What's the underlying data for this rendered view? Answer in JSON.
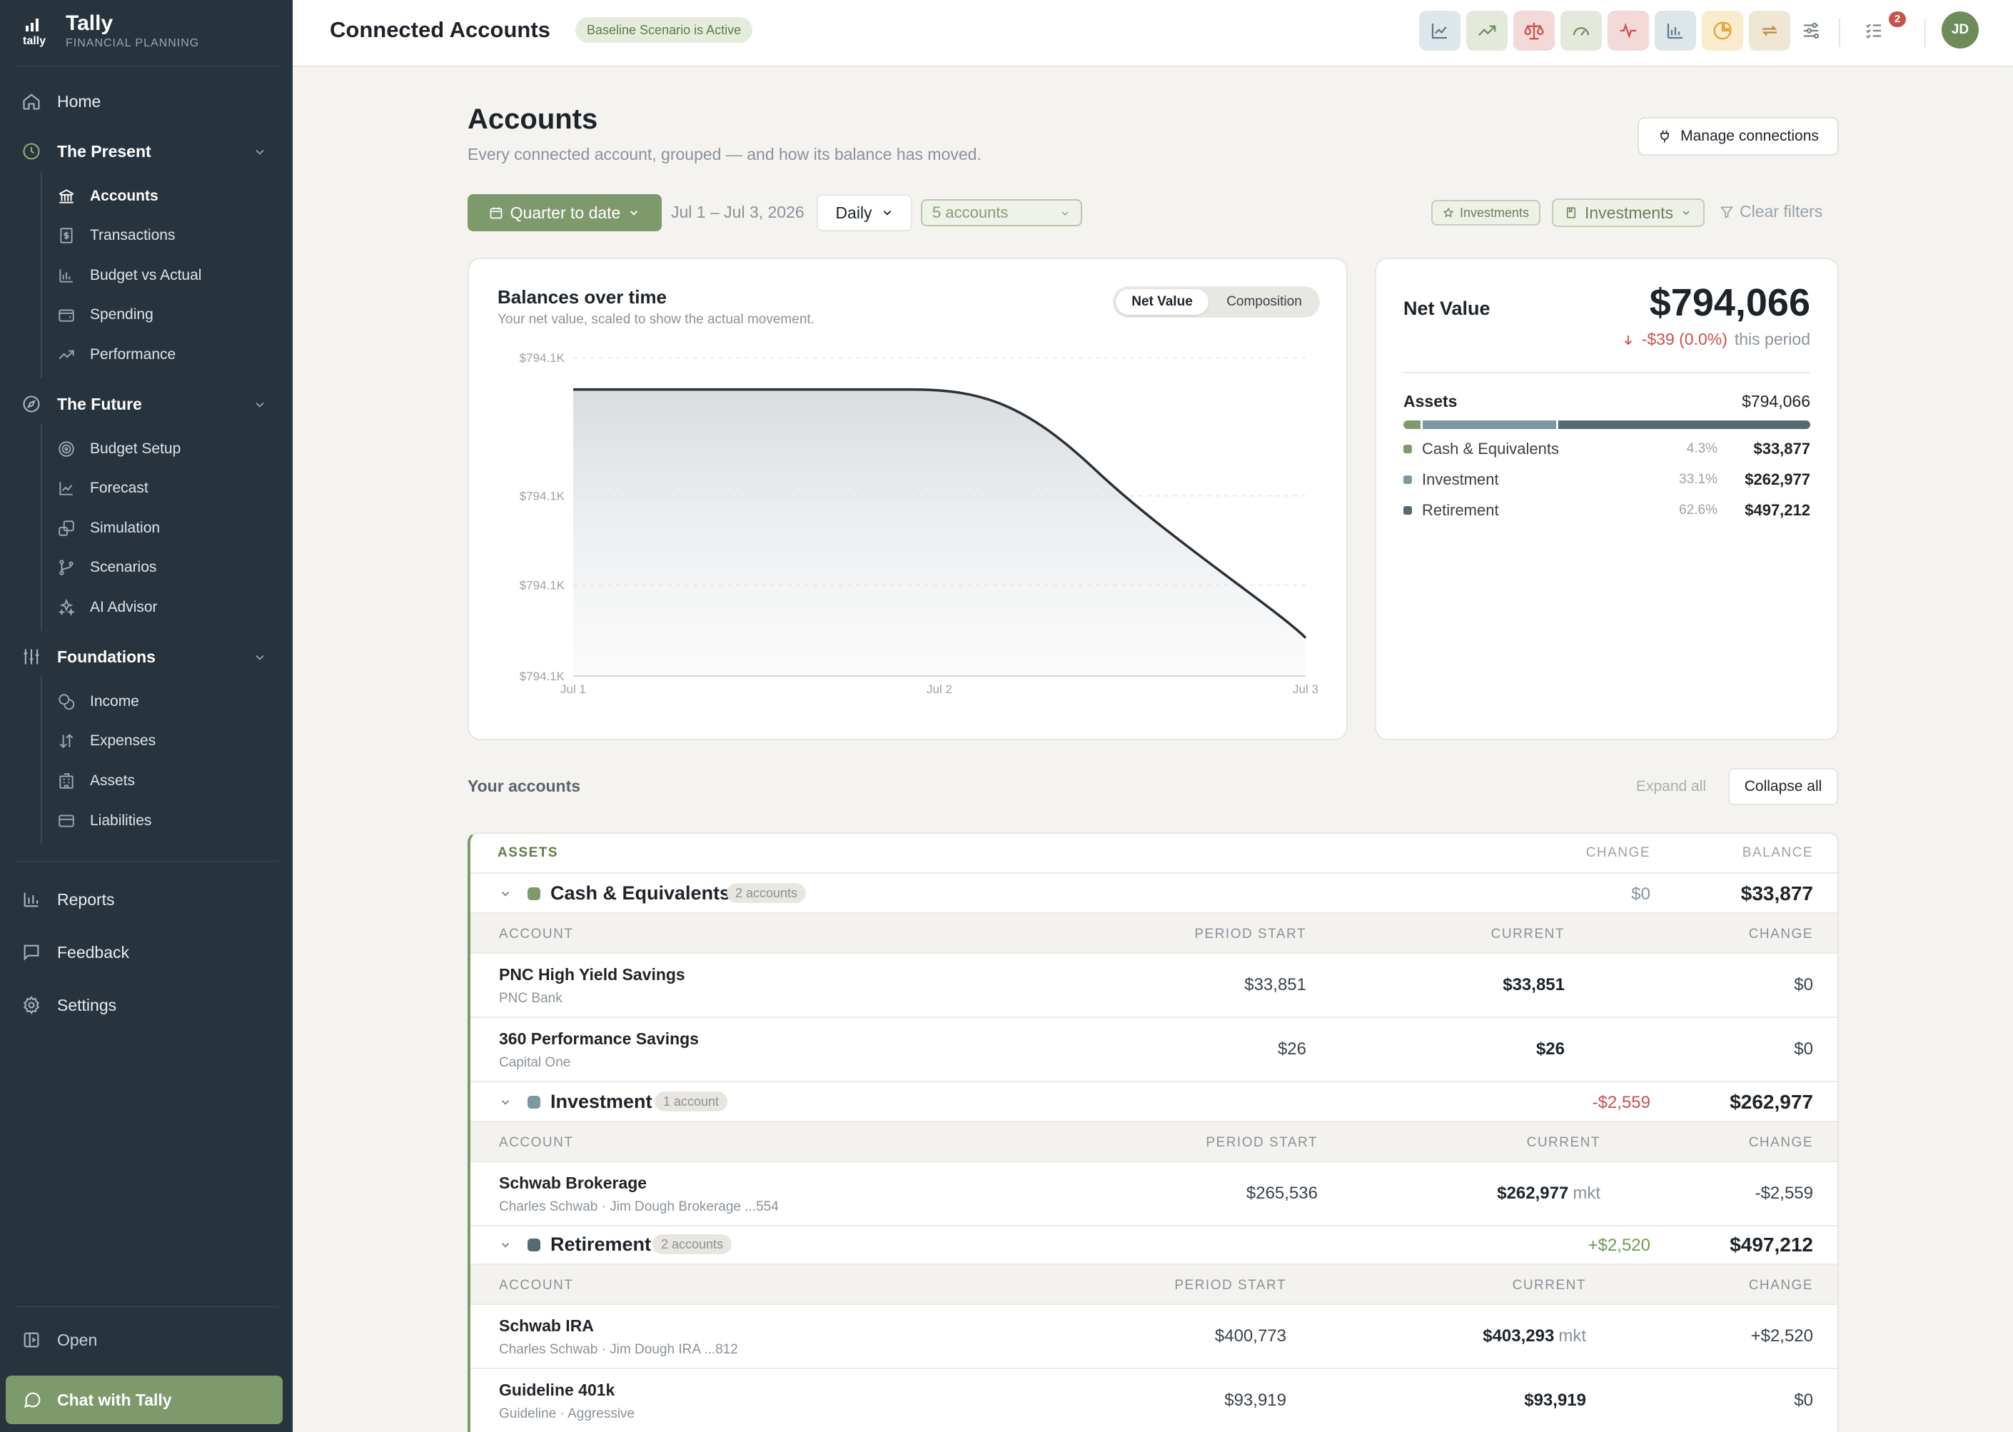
{
  "brand": {
    "name": "Tally",
    "tagline": "FINANCIAL PLANNING"
  },
  "sidebar": {
    "home": "Home",
    "present": {
      "label": "The Present",
      "items": [
        "Accounts",
        "Transactions",
        "Budget vs Actual",
        "Spending",
        "Performance"
      ]
    },
    "future": {
      "label": "The Future",
      "items": [
        "Budget Setup",
        "Forecast",
        "Simulation",
        "Scenarios",
        "AI Advisor"
      ]
    },
    "foundations": {
      "label": "Foundations",
      "items": [
        "Income",
        "Expenses",
        "Assets",
        "Liabilities"
      ]
    },
    "reports": "Reports",
    "feedback": "Feedback",
    "settings": "Settings",
    "open": "Open",
    "chat": "Chat with Tally"
  },
  "topbar": {
    "title": "Connected Accounts",
    "scenario_badge": "Baseline Scenario is Active",
    "notification_count": "2",
    "avatar_initials": "JD"
  },
  "page": {
    "title": "Accounts",
    "subtitle": "Every connected account, grouped — and how its balance has moved.",
    "manage_button": "Manage connections"
  },
  "filters": {
    "period": "Quarter to date",
    "date_range": "Jul 1 – Jul 3, 2026",
    "granularity": "Daily",
    "accounts": "5 accounts",
    "chip_small": "Investments",
    "chip_select": "Investments",
    "clear": "Clear filters"
  },
  "balance_chart": {
    "title": "Balances over time",
    "subtitle": "Your net value, scaled to show the actual movement.",
    "toggle": {
      "on": "Net Value",
      "off": "Composition"
    }
  },
  "chart_data": {
    "type": "area",
    "title": "Balances over time",
    "x": [
      "Jul 1",
      "Jul 2",
      "Jul 3"
    ],
    "y_tick_labels": [
      "$794.1K",
      "$794.1K",
      "$794.1K",
      "$794.1K"
    ],
    "series": [
      {
        "values": [
          794105,
          794105,
          794066
        ]
      }
    ],
    "ylim": [
      794060,
      794110
    ],
    "grid": true
  },
  "net_value": {
    "label": "Net Value",
    "value": "$794,066",
    "change": "-$39 (0.0%)",
    "period": "this period",
    "assets_label": "Assets",
    "assets_value": "$794,066",
    "allocation": [
      {
        "name": "Cash & Equivalents",
        "pct": "4.3%",
        "value": "$33,877",
        "fraction": 0.043,
        "color": "#7e9a6c"
      },
      {
        "name": "Investment",
        "pct": "33.1%",
        "value": "$262,977",
        "fraction": 0.331,
        "color": "#7d97a3"
      },
      {
        "name": "Retirement",
        "pct": "62.6%",
        "value": "$497,212",
        "fraction": 0.626,
        "color": "#566a74"
      }
    ]
  },
  "accounts_section": {
    "title": "Your accounts",
    "expand_all": "Expand all",
    "collapse_all": "Collapse all",
    "assets_header": "ASSETS",
    "change_header": "CHANGE",
    "balance_header": "BALANCE",
    "col_account": "ACCOUNT",
    "col_period_start": "PERIOD START",
    "col_current": "CURRENT",
    "col_change": "CHANGE",
    "mkt": "mkt",
    "groups": [
      {
        "name": "Cash & Equivalents",
        "count": "2 accounts",
        "change": "$0",
        "balance": "$33,877",
        "color": "#7e9a6c",
        "accounts": [
          {
            "name": "PNC High Yield Savings",
            "institution": "PNC Bank",
            "start": "$33,851",
            "current": "$33,851",
            "change": "$0"
          },
          {
            "name": "360 Performance Savings",
            "institution": "Capital One",
            "start": "$26",
            "current": "$26",
            "change": "$0"
          }
        ]
      },
      {
        "name": "Investment",
        "count": "1 account",
        "change": "-$2,559",
        "balance": "$262,977",
        "color": "#7d97a3",
        "accounts": [
          {
            "name": "Schwab Brokerage",
            "institution": "Charles Schwab · Jim Dough Brokerage ...554",
            "start": "$265,536",
            "current": "$262,977",
            "change": "-$2,559"
          }
        ]
      },
      {
        "name": "Retirement",
        "count": "2 accounts",
        "change": "+$2,520",
        "balance": "$497,212",
        "color": "#566a74",
        "accounts": [
          {
            "name": "Schwab IRA",
            "institution": "Charles Schwab · Jim Dough IRA ...812",
            "start": "$400,773",
            "current": "$403,293",
            "change": "+$2,520"
          },
          {
            "name": "Guideline 401k",
            "institution": "Guideline · Aggressive",
            "start": "$93,919",
            "current": "$93,919",
            "change": "$0"
          }
        ]
      }
    ]
  }
}
